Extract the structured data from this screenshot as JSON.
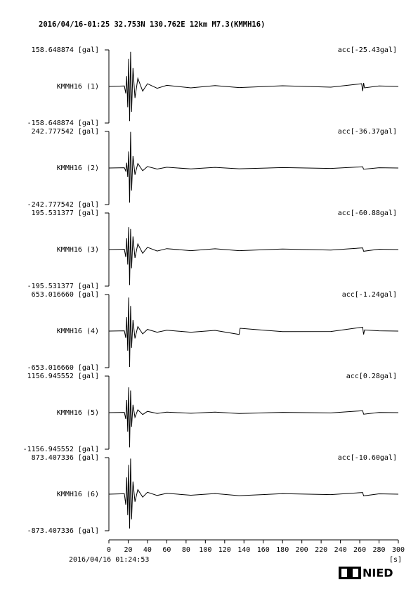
{
  "chart_data": {
    "type": "line",
    "title": "2016/04/16-01:25 32.753N 130.762E 12km M7.3(KMMH16)",
    "xlim": [
      0,
      300
    ],
    "xticks": [
      0,
      20,
      40,
      60,
      80,
      100,
      120,
      140,
      160,
      180,
      200,
      220,
      240,
      260,
      280,
      300
    ],
    "xlabel": "[s]",
    "start_time": "2016/04/16 01:24:53",
    "logo": "NIED",
    "panels": [
      {
        "station": "KMMH16 (1)",
        "annotation": "acc[-25.43gal]",
        "ylim": [
          -158.648874,
          158.648874
        ],
        "yticks": [
          {
            "value": -158.648874,
            "label": "-158.648874 [gal]"
          },
          {
            "value": 158.648874,
            "label": "158.648874 [gal]"
          }
        ],
        "x": [
          0,
          16,
          17.5,
          18.5,
          19.5,
          20.5,
          21.5,
          22.5,
          23.5,
          25,
          27,
          30,
          35,
          40,
          50,
          60,
          85,
          110,
          135,
          180,
          230,
          262,
          263,
          264,
          265,
          280,
          300
        ],
        "values": [
          0,
          2,
          -30,
          45,
          -90,
          120,
          -150,
          150,
          -110,
          80,
          -50,
          35,
          -20,
          12,
          -8,
          5,
          -6,
          4,
          -5,
          3,
          -3,
          12,
          -20,
          15,
          -6,
          2,
          0
        ]
      },
      {
        "station": "KMMH16 (2)",
        "annotation": "acc[-36.37gal]",
        "ylim": [
          -242.777542,
          242.777542
        ],
        "yticks": [
          {
            "value": -242.777542,
            "label": "-242.777542 [gal]"
          },
          {
            "value": 242.777542,
            "label": "242.777542 [gal]"
          }
        ],
        "x": [
          0,
          16,
          17.5,
          18.5,
          19.5,
          20.5,
          21.5,
          22.5,
          23.5,
          25,
          27,
          30,
          35,
          40,
          50,
          60,
          85,
          110,
          135,
          180,
          230,
          263,
          264,
          280,
          300
        ],
        "values": [
          0,
          2,
          -20,
          35,
          -60,
          110,
          -230,
          240,
          -150,
          80,
          -45,
          30,
          -18,
          10,
          -7,
          5,
          -6,
          4,
          -5,
          3,
          -3,
          8,
          -8,
          2,
          0
        ]
      },
      {
        "station": "KMMH16 (3)",
        "annotation": "acc[-60.88gal]",
        "ylim": [
          -195.531377,
          195.531377
        ],
        "yticks": [
          {
            "value": -195.531377,
            "label": "-195.531377 [gal]"
          },
          {
            "value": 195.531377,
            "label": "195.531377 [gal]"
          }
        ],
        "x": [
          0,
          16,
          17.5,
          18.5,
          19.5,
          20.5,
          21.5,
          22.5,
          23.5,
          25,
          27,
          30,
          35,
          40,
          50,
          60,
          85,
          110,
          135,
          180,
          230,
          263,
          264,
          280,
          300
        ],
        "values": [
          0,
          2,
          -40,
          60,
          -80,
          120,
          -190,
          110,
          -100,
          70,
          -45,
          30,
          -20,
          12,
          -8,
          5,
          -6,
          4,
          -6,
          3,
          -3,
          9,
          -9,
          2,
          0
        ]
      },
      {
        "station": "KMMH16 (4)",
        "annotation": "acc[-1.24gal]",
        "ylim": [
          -653.01666,
          653.01666
        ],
        "yticks": [
          {
            "value": -653.01666,
            "label": "-653.016660 [gal]"
          },
          {
            "value": 653.01666,
            "label": "653.016660 [gal]"
          }
        ],
        "x": [
          0,
          16,
          17.5,
          18.5,
          19.5,
          20.5,
          21.5,
          22.5,
          23.5,
          25,
          27,
          30,
          35,
          40,
          50,
          60,
          85,
          110,
          135,
          136,
          180,
          230,
          263,
          264,
          265,
          280,
          300
        ],
        "values": [
          0,
          5,
          -120,
          250,
          -350,
          600,
          -640,
          450,
          -300,
          200,
          -130,
          80,
          -50,
          30,
          -20,
          15,
          -20,
          12,
          -60,
          50,
          -10,
          -8,
          70,
          -60,
          20,
          5,
          0
        ]
      },
      {
        "station": "KMMH16 (5)",
        "annotation": "acc[0.28gal]",
        "ylim": [
          -1156.945552,
          1156.945552
        ],
        "yticks": [
          {
            "value": -1156.945552,
            "label": "-1156.945552 [gal]"
          },
          {
            "value": 1156.945552,
            "label": "1156.945552 [gal]"
          }
        ],
        "x": [
          0,
          16,
          17.5,
          18.5,
          19.5,
          20.5,
          21.5,
          22.5,
          23.5,
          25,
          27,
          30,
          35,
          40,
          50,
          60,
          85,
          110,
          135,
          180,
          230,
          263,
          264,
          280,
          300
        ],
        "values": [
          0,
          8,
          -200,
          400,
          -600,
          800,
          -1100,
          700,
          -450,
          250,
          -150,
          90,
          -60,
          40,
          -25,
          18,
          -20,
          15,
          -30,
          10,
          -8,
          60,
          -50,
          6,
          0
        ]
      },
      {
        "station": "KMMH16 (6)",
        "annotation": "acc[-10.60gal]",
        "ylim": [
          -873.407336,
          873.407336
        ],
        "yticks": [
          {
            "value": -873.407336,
            "label": "-873.407336 [gal]"
          },
          {
            "value": 873.407336,
            "label": "873.407336 [gal]"
          }
        ],
        "x": [
          0,
          16,
          17.5,
          18.5,
          19.5,
          20.5,
          21.5,
          22.5,
          23.5,
          25,
          27,
          30,
          35,
          40,
          50,
          60,
          85,
          110,
          135,
          180,
          230,
          263,
          264,
          280,
          300
        ],
        "values": [
          0,
          10,
          -250,
          400,
          -500,
          700,
          -820,
          850,
          -600,
          300,
          -180,
          110,
          -70,
          45,
          -30,
          20,
          -25,
          15,
          -35,
          12,
          -10,
          40,
          -40,
          8,
          0
        ]
      }
    ]
  }
}
